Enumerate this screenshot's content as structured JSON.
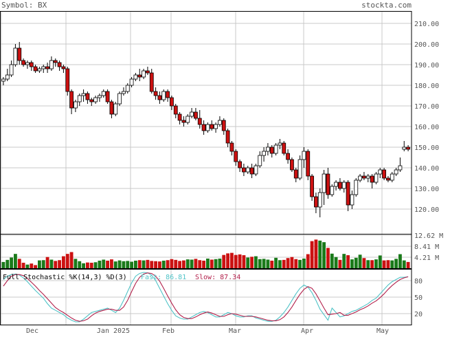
{
  "header": {
    "symbol_label": "Symbol: BX",
    "site": "stockta.com"
  },
  "colors": {
    "up": "#ffffff",
    "down": "#cc1111",
    "vol_up": "#1a7a1a",
    "vol_down": "#cc1111",
    "fast": "#4fc3c7",
    "slow": "#b21f4a",
    "grid": "#c8c8c8",
    "border": "#000000"
  },
  "chart_data": [
    {
      "type": "candlestick",
      "title": "",
      "price_axis": {
        "ticks": [
          "210.00",
          "200.00",
          "190.00",
          "180.00",
          "170.00",
          "160.00",
          "150.00",
          "140.00",
          "130.00",
          "120.00"
        ],
        "ylim": [
          108,
          216
        ]
      },
      "x_labels": [
        "Dec",
        "Jan 2025",
        "Feb",
        "Mar",
        "Apr",
        "May"
      ],
      "ohlc": [
        [
          182,
          184,
          180,
          183
        ],
        [
          183,
          188,
          182,
          185
        ],
        [
          185,
          192,
          184,
          190
        ],
        [
          190,
          200,
          189,
          198
        ],
        [
          198,
          201,
          190,
          192
        ],
        [
          192,
          193,
          189,
          190
        ],
        [
          190,
          192,
          188,
          191
        ],
        [
          191,
          192,
          187,
          189
        ],
        [
          189,
          190,
          186,
          187
        ],
        [
          187,
          189,
          186,
          188
        ],
        [
          188,
          190,
          186,
          189
        ],
        [
          189,
          191,
          186,
          188
        ],
        [
          188,
          194,
          187,
          192
        ],
        [
          192,
          193,
          189,
          191
        ],
        [
          191,
          192,
          187,
          189
        ],
        [
          189,
          190,
          186,
          188
        ],
        [
          188,
          189,
          175,
          177
        ],
        [
          177,
          178,
          166,
          169
        ],
        [
          169,
          173,
          167,
          172
        ],
        [
          172,
          176,
          170,
          175
        ],
        [
          175,
          178,
          172,
          176
        ],
        [
          176,
          177,
          171,
          173
        ],
        [
          173,
          174,
          170,
          172
        ],
        [
          172,
          175,
          171,
          174
        ],
        [
          174,
          176,
          172,
          175
        ],
        [
          175,
          178,
          174,
          177
        ],
        [
          177,
          178,
          171,
          172
        ],
        [
          172,
          173,
          164,
          166
        ],
        [
          166,
          172,
          165,
          171
        ],
        [
          171,
          177,
          170,
          176
        ],
        [
          176,
          179,
          175,
          177
        ],
        [
          177,
          181,
          176,
          180
        ],
        [
          180,
          184,
          179,
          183
        ],
        [
          183,
          186,
          182,
          185
        ],
        [
          185,
          188,
          182,
          184
        ],
        [
          184,
          188,
          183,
          187
        ],
        [
          187,
          189,
          185,
          186
        ],
        [
          186,
          188,
          176,
          177
        ],
        [
          177,
          179,
          173,
          175
        ],
        [
          175,
          177,
          171,
          173
        ],
        [
          173,
          178,
          172,
          177
        ],
        [
          177,
          178,
          172,
          174
        ],
        [
          174,
          175,
          168,
          170
        ],
        [
          170,
          171,
          164,
          166
        ],
        [
          166,
          167,
          161,
          163
        ],
        [
          163,
          165,
          160,
          162
        ],
        [
          162,
          166,
          161,
          165
        ],
        [
          165,
          169,
          164,
          167
        ],
        [
          167,
          169,
          163,
          164
        ],
        [
          164,
          168,
          159,
          161
        ],
        [
          161,
          163,
          156,
          158
        ],
        [
          158,
          162,
          157,
          161
        ],
        [
          161,
          163,
          158,
          159
        ],
        [
          159,
          162,
          157,
          161
        ],
        [
          161,
          165,
          160,
          163
        ],
        [
          163,
          164,
          156,
          158
        ],
        [
          158,
          159,
          150,
          152
        ],
        [
          152,
          153,
          146,
          148
        ],
        [
          148,
          149,
          141,
          143
        ],
        [
          143,
          144,
          138,
          140
        ],
        [
          140,
          142,
          136,
          138
        ],
        [
          138,
          141,
          137,
          140
        ],
        [
          140,
          142,
          135,
          137
        ],
        [
          137,
          142,
          136,
          141
        ],
        [
          141,
          148,
          140,
          146
        ],
        [
          146,
          150,
          143,
          148
        ],
        [
          148,
          152,
          146,
          150
        ],
        [
          150,
          151,
          145,
          147
        ],
        [
          147,
          152,
          146,
          151
        ],
        [
          151,
          154,
          149,
          152
        ],
        [
          152,
          153,
          146,
          147
        ],
        [
          147,
          149,
          142,
          144
        ],
        [
          144,
          145,
          138,
          139
        ],
        [
          139,
          140,
          133,
          135
        ],
        [
          135,
          146,
          134,
          144
        ],
        [
          144,
          150,
          140,
          148
        ],
        [
          148,
          149,
          134,
          136
        ],
        [
          136,
          137,
          124,
          126
        ],
        [
          126,
          128,
          118,
          121
        ],
        [
          121,
          130,
          116,
          128
        ],
        [
          128,
          139,
          122,
          137
        ],
        [
          137,
          140,
          125,
          127
        ],
        [
          127,
          132,
          126,
          131
        ],
        [
          131,
          134,
          129,
          133
        ],
        [
          133,
          135,
          129,
          130
        ],
        [
          130,
          134,
          128,
          133
        ],
        [
          133,
          134,
          119,
          122
        ],
        [
          122,
          129,
          120,
          127
        ],
        [
          127,
          135,
          126,
          134
        ],
        [
          134,
          137,
          133,
          136
        ],
        [
          136,
          138,
          134,
          135
        ],
        [
          135,
          137,
          133,
          136
        ],
        [
          136,
          137,
          130,
          133
        ],
        [
          133,
          138,
          132,
          137
        ],
        [
          137,
          140,
          135,
          139
        ],
        [
          139,
          140,
          134,
          135
        ],
        [
          135,
          136,
          133,
          134
        ],
        [
          134,
          138,
          133,
          137
        ],
        [
          137,
          140,
          136,
          139
        ],
        [
          139,
          145,
          138,
          141
        ],
        [
          149,
          153,
          148,
          150
        ],
        [
          150,
          151,
          148,
          149
        ]
      ],
      "volume_axis": {
        "ticks": [
          "12.62 M",
          "8.41 M",
          "4.21 M"
        ],
        "ylim": [
          0,
          13.2
        ]
      },
      "volume": [
        2.4,
        3.2,
        4.1,
        5.5,
        3.6,
        2.1,
        1.4,
        1.8,
        1.2,
        3.0,
        3.1,
        4.3,
        3.3,
        2.8,
        3.1,
        4.6,
        5.5,
        6.2,
        3.6,
        2.7,
        1.9,
        2.2,
        2.1,
        2.3,
        2.9,
        3.3,
        2.9,
        3.4,
        2.6,
        3.0,
        2.7,
        2.8,
        2.5,
        2.9,
        3.1,
        3.0,
        3.2,
        2.8,
        2.7,
        2.6,
        2.9,
        3.1,
        3.5,
        3.2,
        2.8,
        3.0,
        3.4,
        3.3,
        3.6,
        3.1,
        2.9,
        3.7,
        3.3,
        3.5,
        3.7,
        5.1,
        5.7,
        5.9,
        5.1,
        5.3,
        5.0,
        4.1,
        4.4,
        4.6,
        3.5,
        3.6,
        3.3,
        2.9,
        4.0,
        3.1,
        3.2,
        3.9,
        4.3,
        3.5,
        3.2,
        3.7,
        5.4,
        10.4,
        11.0,
        10.6,
        10.0,
        7.8,
        5.6,
        4.3,
        3.2,
        5.5,
        5.0,
        3.4,
        4.0,
        5.2,
        3.9,
        3.1,
        3.1,
        3.4,
        4.9,
        3.0,
        3.1,
        3.0,
        3.6,
        5.4,
        3.0,
        2.4
      ],
      "stochastic": {
        "label": "Full Stochastic %K(14,3) %D(3)",
        "fast_label": "Fast: 86.81",
        "slow_label": "Slow: 87.34",
        "ticks": [
          "80",
          "50",
          "20"
        ],
        "ylim": [
          0,
          100
        ],
        "fast": [
          82,
          88,
          91,
          92,
          90,
          85,
          78,
          70,
          62,
          55,
          48,
          38,
          30,
          26,
          22,
          18,
          12,
          8,
          5,
          5,
          10,
          16,
          22,
          24,
          26,
          28,
          30,
          26,
          22,
          30,
          44,
          60,
          76,
          88,
          93,
          95,
          94,
          90,
          80,
          66,
          52,
          38,
          26,
          16,
          12,
          10,
          10,
          14,
          18,
          22,
          24,
          22,
          18,
          14,
          14,
          18,
          22,
          20,
          16,
          14,
          14,
          16,
          16,
          12,
          10,
          8,
          6,
          6,
          8,
          14,
          22,
          32,
          44,
          56,
          66,
          72,
          68,
          58,
          44,
          28,
          18,
          8,
          30,
          22,
          14,
          16,
          20,
          24,
          26,
          30,
          34,
          38,
          44,
          48,
          56,
          64,
          72,
          78,
          82,
          86,
          86,
          87
        ],
        "slow": [
          70,
          80,
          88,
          91,
          91,
          89,
          84,
          77,
          70,
          62,
          55,
          47,
          39,
          31,
          26,
          22,
          17,
          12,
          8,
          6,
          7,
          10,
          16,
          21,
          24,
          26,
          28,
          28,
          26,
          26,
          32,
          44,
          60,
          75,
          86,
          92,
          94,
          93,
          88,
          79,
          66,
          52,
          39,
          27,
          18,
          13,
          11,
          11,
          14,
          18,
          21,
          23,
          21,
          18,
          15,
          15,
          18,
          20,
          19,
          17,
          15,
          15,
          15,
          14,
          12,
          10,
          8,
          7,
          7,
          9,
          14,
          22,
          32,
          44,
          55,
          64,
          69,
          66,
          56,
          43,
          30,
          18,
          19,
          20,
          22,
          17,
          17,
          20,
          23,
          27,
          30,
          34,
          39,
          43,
          49,
          56,
          64,
          71,
          77,
          82,
          85,
          87
        ]
      }
    }
  ]
}
